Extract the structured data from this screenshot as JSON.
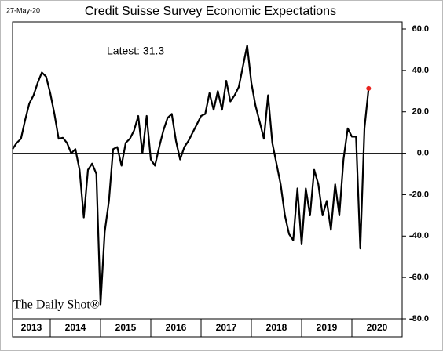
{
  "chart_data": {
    "type": "line",
    "title": "Credit Suisse Survey Economic Expectations",
    "date_label": "27-May-20",
    "annotation": "Latest:  31.3",
    "watermark": "The Daily Shot®",
    "x": [
      2013.25,
      2013.333,
      2013.417,
      2013.5,
      2013.583,
      2013.667,
      2013.75,
      2013.833,
      2013.917,
      2014,
      2014.083,
      2014.167,
      2014.25,
      2014.333,
      2014.417,
      2014.5,
      2014.583,
      2014.667,
      2014.75,
      2014.833,
      2014.917,
      2015,
      2015.083,
      2015.167,
      2015.25,
      2015.333,
      2015.417,
      2015.5,
      2015.583,
      2015.667,
      2015.75,
      2015.833,
      2015.917,
      2016,
      2016.083,
      2016.167,
      2016.25,
      2016.333,
      2016.417,
      2016.5,
      2016.583,
      2016.667,
      2016.75,
      2016.833,
      2016.917,
      2017,
      2017.083,
      2017.167,
      2017.25,
      2017.333,
      2017.417,
      2017.5,
      2017.583,
      2017.667,
      2017.75,
      2017.833,
      2017.917,
      2018,
      2018.083,
      2018.167,
      2018.25,
      2018.333,
      2018.417,
      2018.5,
      2018.583,
      2018.667,
      2018.75,
      2018.833,
      2018.917,
      2019,
      2019.083,
      2019.167,
      2019.25,
      2019.333,
      2019.417,
      2019.5,
      2019.583,
      2019.667,
      2019.75,
      2019.833,
      2019.917,
      2020,
      2020.083,
      2020.167,
      2020.25,
      2020.333
    ],
    "series": [
      {
        "name": "Economic Expectations",
        "color": "#000000",
        "values": [
          2,
          5,
          7,
          16,
          24,
          28,
          34,
          39,
          37,
          29,
          19,
          7,
          7.5,
          5,
          0,
          2,
          -8,
          -31,
          -8,
          -5,
          -10,
          -73,
          -38,
          -23,
          2,
          3,
          -6,
          5,
          7,
          11,
          18,
          0,
          18,
          -3,
          -6,
          3,
          11,
          17,
          19,
          6,
          -3,
          3,
          6,
          10,
          14,
          18,
          19,
          29,
          21,
          30,
          21,
          35,
          25,
          28,
          32,
          42,
          52,
          34,
          23,
          15,
          7,
          28,
          5,
          -5,
          -15,
          -30,
          -39,
          -42,
          -17,
          -44,
          -17,
          -30,
          -8,
          -15,
          -30,
          -23,
          -37,
          -15,
          -30,
          -3,
          12,
          8,
          8,
          -46,
          12,
          31.3
        ]
      }
    ],
    "last_point_color": "#e8231f",
    "xlim": [
      2013.25,
      2021
    ],
    "xticks": [
      2013,
      2014,
      2015,
      2016,
      2017,
      2018,
      2019,
      2020
    ],
    "ylim": [
      -80,
      60
    ],
    "yticks": [
      {
        "value": 60,
        "label": "60.0"
      },
      {
        "value": 40,
        "label": "40.0"
      },
      {
        "value": 20,
        "label": "20.0"
      },
      {
        "value": 0,
        "label": "0.0"
      },
      {
        "value": -20,
        "label": "-20.0"
      },
      {
        "value": -40,
        "label": "-40.0"
      },
      {
        "value": -60,
        "label": "-60.0"
      },
      {
        "value": -80,
        "label": "-80.0"
      }
    ],
    "zero_line": true
  }
}
